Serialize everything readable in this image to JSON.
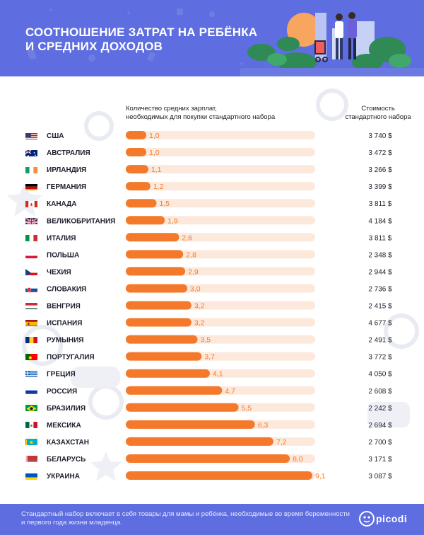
{
  "header": {
    "title_line1": "СООТНОШЕНИЕ ЗАТРАТ НА РЕБЁНКА",
    "title_line2": "И СРЕДНИХ ДОХОДОВ"
  },
  "columns": {
    "bars_line1": "Количество средних зарплат,",
    "bars_line2": "необходимых для покупки стандартного набора",
    "cost_line1": "Стоимость",
    "cost_line2": "стандартного набора"
  },
  "footer": {
    "note": "Стандартный набор включает в себя товары для мамы и ребёнка, необходимые во время беременности и первого года жизни младенца.",
    "logo": "picodi"
  },
  "colors": {
    "header_bg": "#5e6ddf",
    "bar": "#f4792b",
    "bar_track": "#fde9dc",
    "bar_label": "#f4792b"
  },
  "chart_data": {
    "type": "bar",
    "orientation": "horizontal",
    "title": "СООТНОШЕНИЕ ЗАТРАТ НА РЕБЁНКА И СРЕДНИХ ДОХОДОВ",
    "xlim": [
      0,
      9.1
    ],
    "categories": [
      "США",
      "АВСТРАЛИЯ",
      "ИРЛАНДИЯ",
      "ГЕРМАНИЯ",
      "КАНАДА",
      "ВЕЛИКОБРИТАНИЯ",
      "ИТАЛИЯ",
      "ПОЛЬША",
      "ЧЕХИЯ",
      "СЛОВАКИЯ",
      "ВЕНГРИЯ",
      "ИСПАНИЯ",
      "РУМЫНИЯ",
      "ПОРТУГАЛИЯ",
      "ГРЕЦИЯ",
      "РОССИЯ",
      "БРАЗИЛИЯ",
      "МЕКСИКА",
      "КАЗАХСТАН",
      "БЕЛАРУСЬ",
      "УКРАИНА"
    ],
    "series": [
      {
        "name": "Количество средних зарплат, необходимых для покупки стандартного набора",
        "values": [
          1.0,
          1.0,
          1.1,
          1.2,
          1.5,
          1.9,
          2.6,
          2.8,
          2.9,
          3.0,
          3.2,
          3.2,
          3.5,
          3.7,
          4.1,
          4.7,
          5.5,
          6.3,
          7.2,
          8.0,
          9.1
        ],
        "labels": [
          "1,0",
          "1,0",
          "1,1",
          "1,2",
          "1,5",
          "1,9",
          "2,6",
          "2,8",
          "2,9",
          "3,0",
          "3,2",
          "3,2",
          "3,5",
          "3,7",
          "4,1",
          "4,7",
          "5,5",
          "6,3",
          "7,2",
          "8,0",
          "9,1"
        ]
      }
    ],
    "costs": [
      "3 740 $",
      "3 472 $",
      "3 266 $",
      "3 399 $",
      "3 811 $",
      "4 184 $",
      "3 811 $",
      "2 348 $",
      "2 944 $",
      "2 736 $",
      "2 415 $",
      "4 677 $",
      "2 491 $",
      "3 772 $",
      "4 050 $",
      "2 608 $",
      "2 242 $",
      "2 694 $",
      "2 700 $",
      "3 171 $",
      "3 087 $"
    ],
    "flags": [
      "us-flag-icon",
      "au-flag-icon",
      "ie-flag-icon",
      "de-flag-icon",
      "ca-flag-icon",
      "gb-flag-icon",
      "it-flag-icon",
      "pl-flag-icon",
      "cz-flag-icon",
      "sk-flag-icon",
      "hu-flag-icon",
      "es-flag-icon",
      "ro-flag-icon",
      "pt-flag-icon",
      "gr-flag-icon",
      "ru-flag-icon",
      "br-flag-icon",
      "mx-flag-icon",
      "kz-flag-icon",
      "by-flag-icon",
      "ua-flag-icon"
    ]
  }
}
